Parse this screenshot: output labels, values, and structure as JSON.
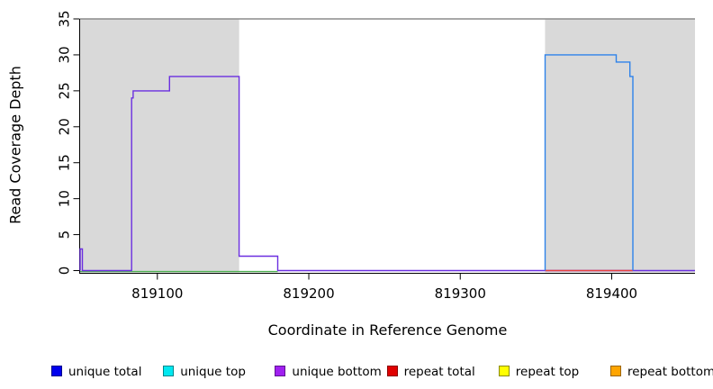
{
  "chart_data": {
    "type": "line",
    "title": "",
    "xlabel": "Coordinate in Reference Genome",
    "ylabel": "Read Coverage Depth",
    "xlim": [
      819049,
      819455
    ],
    "ylim": [
      0,
      35
    ],
    "x_ticks": [
      819100,
      819200,
      819300,
      819400
    ],
    "y_ticks": [
      0,
      5,
      10,
      15,
      20,
      25,
      30,
      35
    ],
    "grid": false,
    "legend_position": "bottom",
    "region_fill": "#D9D9D9",
    "clip_line": {
      "y": 35,
      "color": "#8C8C8C"
    },
    "shaded_regions": [
      {
        "name": "repeat-region-left",
        "x0": 819049,
        "x1": 819154
      },
      {
        "name": "repeat-region-right",
        "x0": 819356,
        "x1": 819455
      }
    ],
    "series": [
      {
        "name": "unique bottom coverage",
        "color": "#4CAE50",
        "dy": 1.1,
        "points": [
          [
            819049,
            0
          ],
          [
            819179.5,
            0
          ]
        ]
      },
      {
        "name": "unique coverage left block",
        "color": "#6B2FE0",
        "dy": 0,
        "points": [
          [
            819049,
            0
          ],
          [
            819049,
            3
          ],
          [
            819050.5,
            3
          ],
          [
            819050.5,
            0
          ],
          [
            819083,
            0
          ],
          [
            819083,
            24
          ],
          [
            819084,
            24
          ],
          [
            819084,
            25
          ],
          [
            819108,
            25
          ],
          [
            819108,
            27
          ],
          [
            819154,
            27
          ],
          [
            819154,
            2
          ],
          [
            819179.5,
            2
          ],
          [
            819179.5,
            0
          ],
          [
            819455,
            0
          ]
        ]
      },
      {
        "name": "repeat total baseline",
        "color": "#E84040",
        "dy": 0,
        "points": [
          [
            819356,
            0
          ],
          [
            819414,
            0
          ]
        ]
      },
      {
        "name": "unique total right block",
        "color": "#2E82EA",
        "dy": 0,
        "points": [
          [
            819356,
            0
          ],
          [
            819356,
            30
          ],
          [
            819403,
            30
          ],
          [
            819403,
            29
          ],
          [
            819412,
            29
          ],
          [
            819412,
            27
          ],
          [
            819414,
            27
          ],
          [
            819414,
            0
          ]
        ]
      }
    ],
    "legend": [
      {
        "label": "unique total",
        "color": "#0000EE",
        "border": "#00008B"
      },
      {
        "label": "unique top",
        "color": "#00E8F0",
        "border": "#00868B"
      },
      {
        "label": "unique bottom",
        "color": "#A020F0",
        "border": "#5E1390"
      },
      {
        "label": "repeat total",
        "color": "#E00000",
        "border": "#8B0000"
      },
      {
        "label": "repeat top",
        "color": "#FFFF00",
        "border": "#8B8B00"
      },
      {
        "label": "repeat bottom",
        "color": "#FFA500",
        "border": "#9C6500"
      }
    ]
  }
}
